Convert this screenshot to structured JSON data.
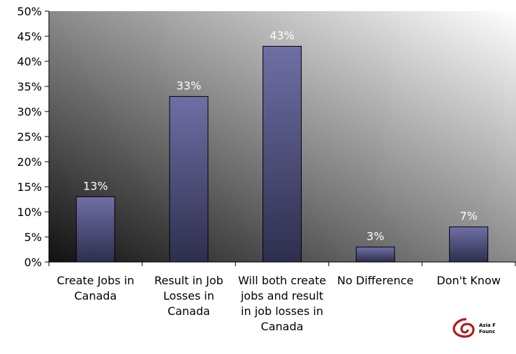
{
  "chart_data": {
    "type": "bar",
    "categories": [
      "Create Jobs in Canada",
      "Result in Job Losses in Canada",
      "Will both create jobs and result in job losses in Canada",
      "No Difference",
      "Don't Know"
    ],
    "values": [
      13,
      33,
      43,
      3,
      7
    ],
    "data_labels": [
      "13%",
      "33%",
      "43%",
      "3%",
      "7%"
    ],
    "ylim": [
      0,
      50
    ],
    "yticks": [
      0,
      5,
      10,
      15,
      20,
      25,
      30,
      35,
      40,
      45,
      50
    ],
    "ytick_labels": [
      "0%",
      "5%",
      "10%",
      "15%",
      "20%",
      "25%",
      "30%",
      "35%",
      "40%",
      "45%",
      "50%"
    ],
    "title": "",
    "xlabel": "",
    "ylabel": "",
    "grid": false,
    "colors": {
      "bar_top": "#6f6fa6",
      "bar_bottom": "#2e2e4e",
      "bar_border": "#000000",
      "data_label": "#ffffff",
      "background_light": "#ffffff",
      "background_dark": "#111111"
    }
  },
  "logo": {
    "icon": "asia-foundation-swirl-icon",
    "line1": "Asia F",
    "line2": "Founc"
  }
}
